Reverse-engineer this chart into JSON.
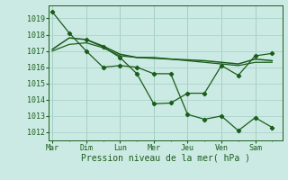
{
  "background_color": "#cceae4",
  "grid_color": "#aad4cc",
  "line_color": "#1a5c1a",
  "title": "Pression niveau de la mer( hPa )",
  "days": [
    "Mar",
    "Dim",
    "Lun",
    "Mer",
    "Jeu",
    "Ven",
    "Sam"
  ],
  "ylim": [
    1011.5,
    1019.8
  ],
  "yticks": [
    1012,
    1013,
    1014,
    1015,
    1016,
    1017,
    1018,
    1019
  ],
  "day_positions": [
    0,
    1,
    2,
    3,
    4,
    5,
    6
  ],
  "xmin": -0.1,
  "xmax": 6.8,
  "s1_x": [
    0.0,
    0.5,
    1.0,
    1.5,
    2.0,
    2.5,
    3.0,
    3.5,
    4.0,
    4.5,
    5.0,
    5.5,
    6.0,
    6.5
  ],
  "s1_y": [
    1019.4,
    1018.1,
    1017.0,
    1016.0,
    1016.1,
    1016.0,
    1015.6,
    1015.6,
    1013.1,
    1012.8,
    1013.0,
    1012.1,
    1012.9,
    1012.3
  ],
  "s2_x": [
    0.0,
    0.5,
    1.0,
    1.5,
    2.0,
    2.5,
    3.0,
    3.5,
    4.0,
    4.5,
    5.0,
    5.5,
    6.0,
    6.5
  ],
  "s2_y": [
    1017.1,
    1017.8,
    1017.7,
    1017.3,
    1016.8,
    1016.6,
    1016.55,
    1016.5,
    1016.45,
    1016.4,
    1016.3,
    1016.2,
    1016.5,
    1016.4
  ],
  "s3_x": [
    0.0,
    0.5,
    1.0,
    1.5,
    2.0,
    2.5,
    3.0,
    3.5,
    4.0,
    4.5,
    5.0,
    5.5,
    6.0,
    6.5
  ],
  "s3_y": [
    1017.0,
    1017.4,
    1017.5,
    1017.2,
    1016.7,
    1016.6,
    1016.6,
    1016.5,
    1016.4,
    1016.3,
    1016.2,
    1016.1,
    1016.3,
    1016.3
  ],
  "s4_x": [
    1.0,
    1.5,
    2.0,
    2.5,
    3.0,
    3.5,
    4.0,
    4.5,
    5.0,
    5.5,
    6.0,
    6.5
  ],
  "s4_y": [
    1017.7,
    1017.25,
    1016.6,
    1015.6,
    1013.75,
    1013.8,
    1014.4,
    1014.4,
    1016.1,
    1015.5,
    1016.7,
    1016.85
  ]
}
